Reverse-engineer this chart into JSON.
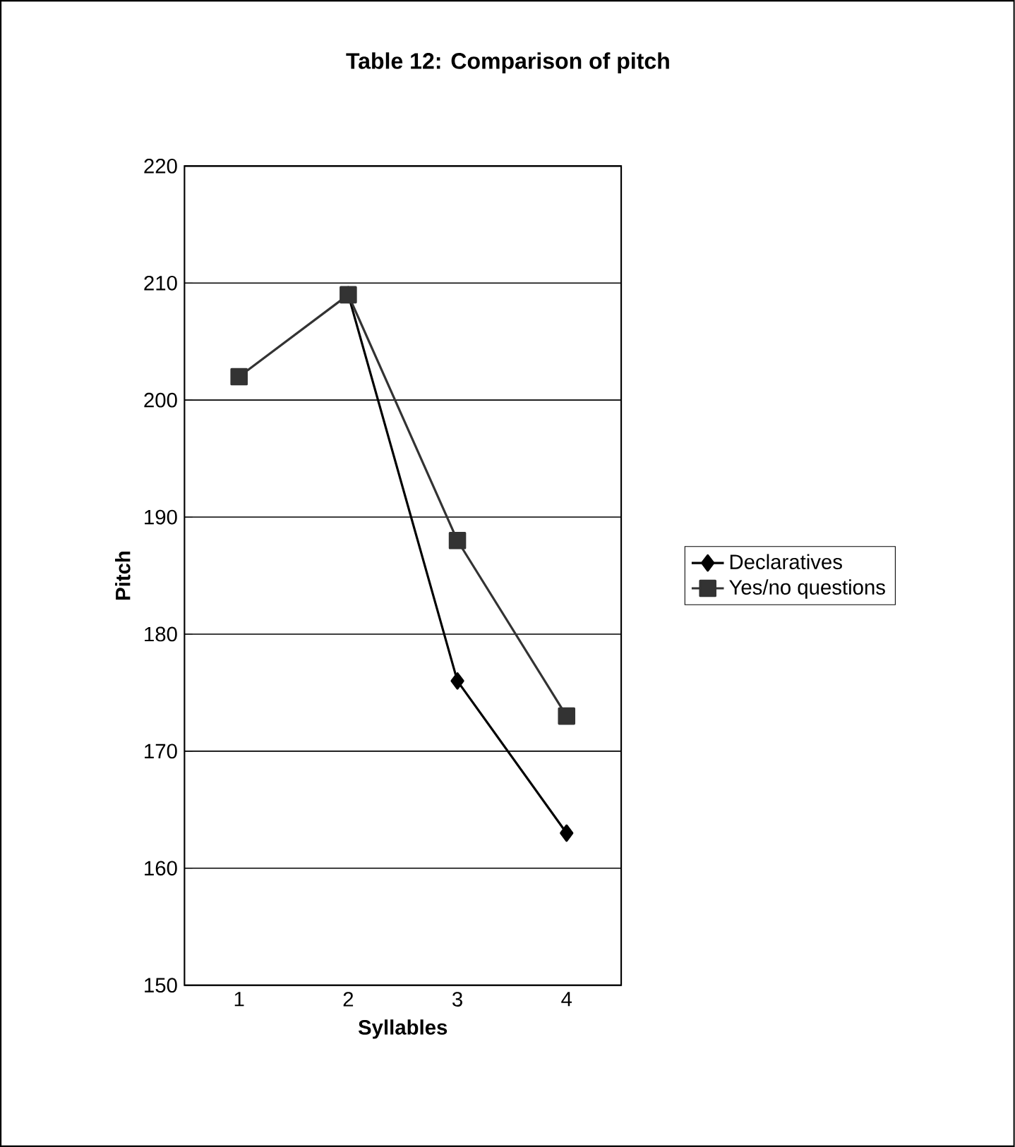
{
  "chart_data": {
    "type": "line",
    "title": "Table 12: Comparison of pitch",
    "xlabel": "Syllables",
    "ylabel": "Pitch",
    "categories": [
      "1",
      "2",
      "3",
      "4"
    ],
    "series": [
      {
        "name": "Declaratives",
        "color": "#000000",
        "marker": "diamond",
        "values": [
          null,
          209,
          176,
          163
        ]
      },
      {
        "name": "Yes/no questions",
        "color": "#333333",
        "marker": "square",
        "values": [
          202,
          209,
          188,
          173
        ]
      }
    ],
    "ylim": [
      150,
      220
    ],
    "yticks": [
      150,
      160,
      170,
      180,
      190,
      200,
      210,
      220
    ],
    "grid": "y",
    "legend": "right",
    "line_style": "solid"
  }
}
